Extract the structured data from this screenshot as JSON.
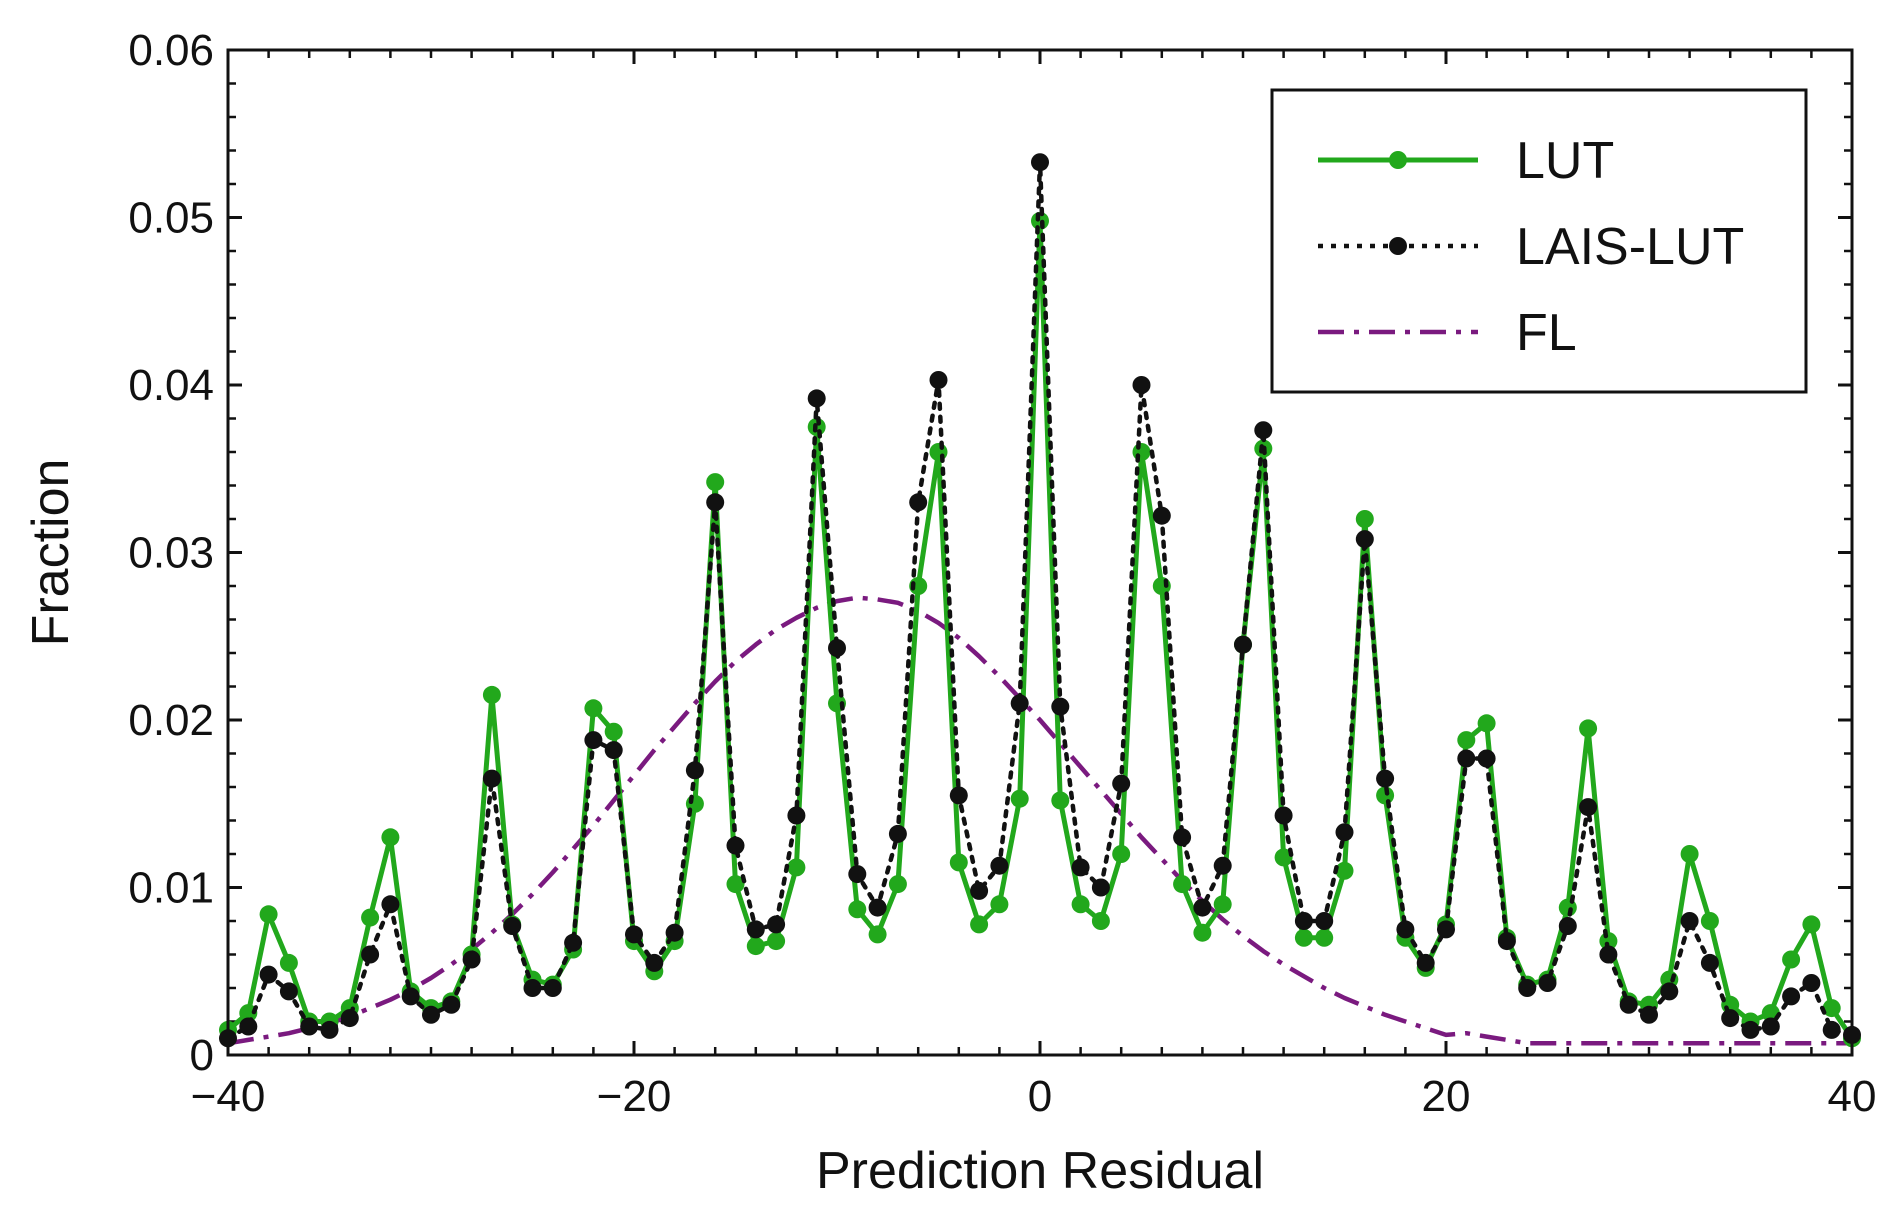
{
  "chart_data": {
    "type": "line",
    "title": "",
    "xlabel": "Prediction Residual",
    "ylabel": "Fraction",
    "xlim": [
      -40,
      40
    ],
    "ylim": [
      0,
      0.06
    ],
    "xticks": [
      -40,
      -20,
      0,
      20,
      40
    ],
    "xtick_labels": [
      "−40",
      "−20",
      "0",
      "20",
      "40"
    ],
    "yticks": [
      0,
      0.01,
      0.02,
      0.03,
      0.04,
      0.05,
      0.06
    ],
    "ytick_labels": [
      "0",
      "0.01",
      "0.02",
      "0.03",
      "0.04",
      "0.05",
      "0.06"
    ],
    "legend_position": "top-right",
    "x": [
      -40,
      -39,
      -38,
      -37,
      -36,
      -35,
      -34,
      -33,
      -32,
      -31,
      -30,
      -29,
      -28,
      -27,
      -26,
      -25,
      -24,
      -23,
      -22,
      -21,
      -20,
      -19,
      -18,
      -17,
      -16,
      -15,
      -14,
      -13,
      -12,
      -11,
      -10,
      -9,
      -8,
      -7,
      -6,
      -5,
      -4,
      -3,
      -2,
      -1,
      0,
      1,
      2,
      3,
      4,
      5,
      6,
      7,
      8,
      9,
      10,
      11,
      12,
      13,
      14,
      15,
      16,
      17,
      18,
      19,
      20,
      21,
      22,
      23,
      24,
      25,
      26,
      27,
      28,
      29,
      30,
      31,
      32,
      33,
      34,
      35,
      36,
      37,
      38,
      39,
      40
    ],
    "series": [
      {
        "name": "LUT",
        "color": "#22a81c",
        "style": "solid-marker",
        "values": [
          0.0015,
          0.0025,
          0.0084,
          0.0055,
          0.002,
          0.002,
          0.0028,
          0.0082,
          0.013,
          0.0038,
          0.0028,
          0.0032,
          0.006,
          0.0215,
          0.0078,
          0.0045,
          0.0042,
          0.0063,
          0.0207,
          0.0193,
          0.0068,
          0.005,
          0.0068,
          0.015,
          0.0342,
          0.0102,
          0.0065,
          0.0068,
          0.0112,
          0.0375,
          0.021,
          0.0087,
          0.0072,
          0.0102,
          0.028,
          0.036,
          0.0115,
          0.0078,
          0.009,
          0.0153,
          0.0498,
          0.0152,
          0.009,
          0.008,
          0.012,
          0.036,
          0.028,
          0.0102,
          0.0073,
          0.009,
          0.0245,
          0.0362,
          0.0118,
          0.007,
          0.007,
          0.011,
          0.032,
          0.0155,
          0.007,
          0.0052,
          0.0078,
          0.0188,
          0.0198,
          0.007,
          0.0042,
          0.0045,
          0.0088,
          0.0195,
          0.0068,
          0.0032,
          0.003,
          0.0045,
          0.012,
          0.008,
          0.003,
          0.002,
          0.0025,
          0.0057,
          0.0078,
          0.0028,
          0.001
        ]
      },
      {
        "name": "LAIS-LUT",
        "color": "#111111",
        "style": "dotted-marker",
        "values": [
          0.001,
          0.0017,
          0.0048,
          0.0038,
          0.0017,
          0.0015,
          0.0022,
          0.006,
          0.009,
          0.0035,
          0.0024,
          0.003,
          0.0057,
          0.0165,
          0.0077,
          0.004,
          0.004,
          0.0067,
          0.0188,
          0.0182,
          0.0072,
          0.0055,
          0.0073,
          0.017,
          0.033,
          0.0125,
          0.0075,
          0.0078,
          0.0143,
          0.0392,
          0.0243,
          0.0108,
          0.0088,
          0.0132,
          0.033,
          0.0403,
          0.0155,
          0.0098,
          0.0113,
          0.021,
          0.0533,
          0.0208,
          0.0112,
          0.01,
          0.0162,
          0.04,
          0.0322,
          0.013,
          0.0088,
          0.0113,
          0.0245,
          0.0373,
          0.0143,
          0.008,
          0.008,
          0.0133,
          0.0308,
          0.0165,
          0.0075,
          0.0055,
          0.0075,
          0.0177,
          0.0177,
          0.0068,
          0.004,
          0.0043,
          0.0077,
          0.0148,
          0.006,
          0.003,
          0.0024,
          0.0038,
          0.008,
          0.0055,
          0.0022,
          0.0015,
          0.0017,
          0.0035,
          0.0043,
          0.0015,
          0.0012
        ]
      },
      {
        "name": "FL",
        "color": "#7a1a7f",
        "style": "dashdot",
        "values": [
          0.0007,
          0.0009,
          0.0011,
          0.0013,
          0.0016,
          0.0019,
          0.0023,
          0.0028,
          0.0033,
          0.0039,
          0.0046,
          0.0054,
          0.0063,
          0.0073,
          0.0084,
          0.0096,
          0.0109,
          0.0123,
          0.0137,
          0.0152,
          0.0167,
          0.0182,
          0.0196,
          0.021,
          0.0223,
          0.0235,
          0.0245,
          0.0254,
          0.0261,
          0.0267,
          0.0271,
          0.0273,
          0.0272,
          0.027,
          0.0265,
          0.0258,
          0.0249,
          0.0238,
          0.0226,
          0.0213,
          0.02,
          0.0186,
          0.0172,
          0.0158,
          0.0144,
          0.013,
          0.0117,
          0.0104,
          0.0092,
          0.0081,
          0.0071,
          0.0062,
          0.0054,
          0.0047,
          0.004,
          0.0034,
          0.0029,
          0.0024,
          0.002,
          0.0016,
          0.0012
        ],
        "x_values": [
          -40,
          -39,
          -38,
          -37,
          -36,
          -35,
          -34,
          -33,
          -32,
          -31,
          -30,
          -29,
          -28,
          -27,
          -26,
          -25,
          -24,
          -23,
          -22,
          -21,
          -20,
          -19,
          -18,
          -17,
          -16,
          -15,
          -14,
          -13,
          -12,
          -11,
          -10,
          -9,
          -8,
          -7,
          -6,
          -5,
          -4,
          -3,
          -2,
          -1,
          0,
          1,
          2,
          3,
          4,
          5,
          6,
          7,
          8,
          9,
          10,
          11,
          12,
          13,
          14,
          15,
          16,
          17,
          18,
          19,
          20
        ]
      }
    ]
  }
}
